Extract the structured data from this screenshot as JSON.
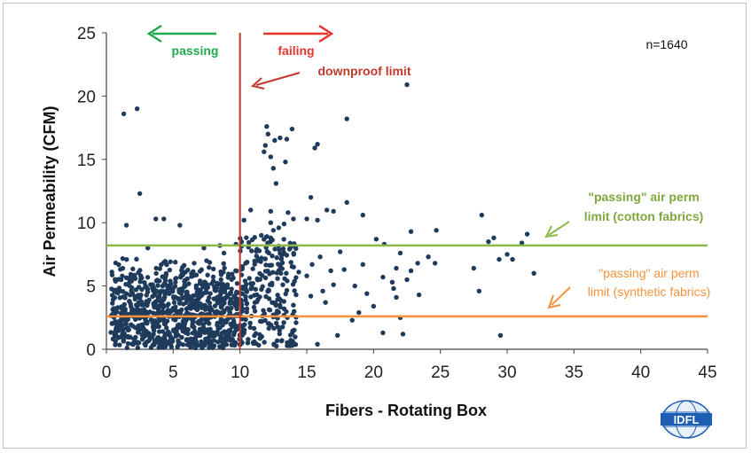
{
  "chart_data": {
    "type": "scatter",
    "title": "",
    "xlabel": "Fibers - Rotating Box",
    "ylabel": "Air Permeability (CFM)",
    "xlim": [
      0,
      45
    ],
    "ylim": [
      0,
      25
    ],
    "xticks": [
      0,
      5,
      10,
      15,
      20,
      25,
      30,
      35,
      40,
      45
    ],
    "yticks": [
      0,
      5,
      10,
      15,
      20,
      25
    ],
    "grid": false,
    "n_label": "n=1640",
    "point_color": "#1f3b5c",
    "reference_lines": {
      "downproof_limit_x": 10,
      "cotton_limit_y": 8.2,
      "synthetic_limit_y": 2.6
    },
    "annotations": {
      "passing": "passing",
      "failing": "failing",
      "downproof": "downproof limit",
      "cotton_line1": "\"passing\" air perm",
      "cotton_line2": "limit (cotton fabrics)",
      "synthetic_line1": "\"passing\" air perm",
      "synthetic_line2": "limit (synthetic fabrics)"
    },
    "colors": {
      "passing": "#22a94f",
      "failing": "#e8352a",
      "downproof": "#c0392b",
      "cotton": "#8db84a",
      "synthetic": "#f5923e"
    },
    "points": [
      [
        1.3,
        18.6
      ],
      [
        2.3,
        19.0
      ],
      [
        22.5,
        20.9
      ],
      [
        18.0,
        18.2
      ],
      [
        12.0,
        17.6
      ],
      [
        12.1,
        17.0
      ],
      [
        12.6,
        16.5
      ],
      [
        13.0,
        16.7
      ],
      [
        13.5,
        16.6
      ],
      [
        13.9,
        17.4
      ],
      [
        11.8,
        15.6
      ],
      [
        12.3,
        15.2
      ],
      [
        12.5,
        14.3
      ],
      [
        13.4,
        14.8
      ],
      [
        11.9,
        16.1
      ],
      [
        15.8,
        16.2
      ],
      [
        15.6,
        15.9
      ],
      [
        12.7,
        13.1
      ],
      [
        2.5,
        12.3
      ],
      [
        15.3,
        12.0
      ],
      [
        18.0,
        11.6
      ],
      [
        10.8,
        11.0
      ],
      [
        12.3,
        10.9
      ],
      [
        16.5,
        11.0
      ],
      [
        13.6,
        10.8
      ],
      [
        17.0,
        10.9
      ],
      [
        19.2,
        10.6
      ],
      [
        28.1,
        10.6
      ],
      [
        3.7,
        10.3
      ],
      [
        4.3,
        10.3
      ],
      [
        10.3,
        10.2
      ],
      [
        15.0,
        10.3
      ],
      [
        15.8,
        10.2
      ],
      [
        1.5,
        9.8
      ],
      [
        5.5,
        9.8
      ],
      [
        12.3,
        10.0
      ],
      [
        13.3,
        9.9
      ],
      [
        14.0,
        10.3
      ],
      [
        12.9,
        9.6
      ],
      [
        12.5,
        9.4
      ],
      [
        24.7,
        9.4
      ],
      [
        31.5,
        9.1
      ],
      [
        22.8,
        9.3
      ],
      [
        11.6,
        9.0
      ],
      [
        12.3,
        8.8
      ],
      [
        20.2,
        8.7
      ],
      [
        29.0,
        8.8
      ],
      [
        28.6,
        8.5
      ],
      [
        20.8,
        8.3
      ],
      [
        31.1,
        8.4
      ],
      [
        17.5,
        7.7
      ],
      [
        22.0,
        7.6
      ],
      [
        24.1,
        7.3
      ],
      [
        30.0,
        7.5
      ],
      [
        29.4,
        7.1
      ],
      [
        30.4,
        7.1
      ],
      [
        27.5,
        6.4
      ],
      [
        32.0,
        6.0
      ],
      [
        24.6,
        6.8
      ],
      [
        23.3,
        6.8
      ],
      [
        22.8,
        6.2
      ],
      [
        21.7,
        6.4
      ],
      [
        20.7,
        5.7
      ],
      [
        19.2,
        6.7
      ],
      [
        17.8,
        6.3
      ],
      [
        18.6,
        5.0
      ],
      [
        21.4,
        5.3
      ],
      [
        22.5,
        5.5
      ],
      [
        27.9,
        4.6
      ],
      [
        21.7,
        4.1
      ],
      [
        20.0,
        3.4
      ],
      [
        18.9,
        2.9
      ],
      [
        18.4,
        2.3
      ],
      [
        16.4,
        3.7
      ],
      [
        17.3,
        1.1
      ],
      [
        15.8,
        0.4
      ],
      [
        14.2,
        2.1
      ],
      [
        20.7,
        1.3
      ],
      [
        22.2,
        1.2
      ],
      [
        22.0,
        2.5
      ],
      [
        29.5,
        1.1
      ],
      [
        23.4,
        4.3
      ],
      [
        21.5,
        4.8
      ],
      [
        16.0,
        7.3
      ],
      [
        15.4,
        6.7
      ],
      [
        16.8,
        6.2
      ],
      [
        14.4,
        6.1
      ],
      [
        15.0,
        5.8
      ],
      [
        14.2,
        4.3
      ],
      [
        15.3,
        4.2
      ],
      [
        16.2,
        4.6
      ],
      [
        17.0,
        5.1
      ],
      [
        19.5,
        4.4
      ],
      [
        8.5,
        8.2
      ],
      [
        7.3,
        8.0
      ],
      [
        3.1,
        8.0
      ],
      [
        9.7,
        8.3
      ],
      [
        8.8,
        7.6
      ]
    ]
  }
}
